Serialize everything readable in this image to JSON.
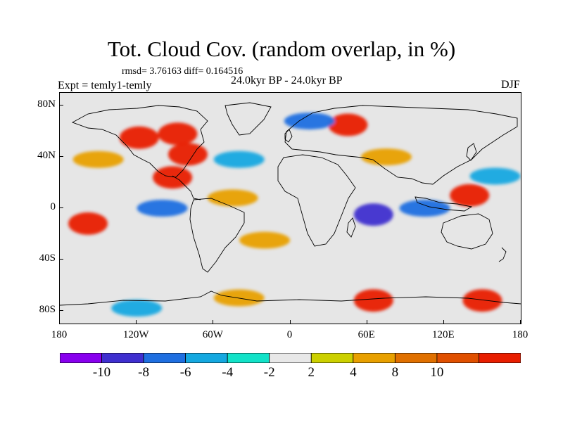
{
  "header": {
    "title": "Tot. Cloud Cov. (random overlap, in %)",
    "stats": "rmsd= 3.76163 diff= 0.164516",
    "experiment": "Expt = temly1-temly",
    "period": "24.0kyr BP - 24.0kyr BP",
    "season": "DJF"
  },
  "map": {
    "projection": "cylindrical equidistant",
    "lon_range": [
      -180,
      180
    ],
    "lat_range": [
      -90,
      90
    ],
    "x_tick_labels": [
      "180",
      "120W",
      "60W",
      "0",
      "60E",
      "120E",
      "180"
    ],
    "y_tick_labels": [
      "80N",
      "40N",
      "0",
      "40S",
      "80S"
    ],
    "background_color": "#e6e6e6",
    "coastline_color": "#000000",
    "anomaly_patches": [
      {
        "region": "North Pacific / Gulf of Alaska",
        "lon": -150,
        "lat": 38,
        "level": 4
      },
      {
        "region": "Western North America",
        "lon": -118,
        "lat": 55,
        "level": 10
      },
      {
        "region": "Hudson Bay",
        "lon": -88,
        "lat": 58,
        "level": 10
      },
      {
        "region": "Eastern United States",
        "lon": -80,
        "lat": 42,
        "level": 10
      },
      {
        "region": "Gulf of Mexico",
        "lon": -92,
        "lat": 24,
        "level": 10
      },
      {
        "region": "Central North Atlantic",
        "lon": -40,
        "lat": 38,
        "level": -4
      },
      {
        "region": "Tropical North Atlantic",
        "lon": -45,
        "lat": 8,
        "level": 4
      },
      {
        "region": "Northern Eurasia",
        "lon": 45,
        "lat": 65,
        "level": 10
      },
      {
        "region": "Scandinavia",
        "lon": 15,
        "lat": 68,
        "level": -6
      },
      {
        "region": "Central Asia",
        "lon": 75,
        "lat": 40,
        "level": 4
      },
      {
        "region": "Equatorial Indian Ocean",
        "lon": 65,
        "lat": -5,
        "level": -8
      },
      {
        "region": "Maritime Continent",
        "lon": 105,
        "lat": 0,
        "level": -6
      },
      {
        "region": "Western Pacific warm pool",
        "lon": 140,
        "lat": 10,
        "level": 10
      },
      {
        "region": "Subtropical western Pacific",
        "lon": 160,
        "lat": 25,
        "level": -4
      },
      {
        "region": "Eastern tropical South Pacific",
        "lon": -158,
        "lat": -12,
        "level": 10
      },
      {
        "region": "Tropical eastern Pacific",
        "lon": -100,
        "lat": 0,
        "level": -6
      },
      {
        "region": "South Atlantic",
        "lon": -20,
        "lat": -25,
        "level": 4
      },
      {
        "region": "Southern Ocean (Atlantic sector)",
        "lon": -40,
        "lat": -70,
        "level": 4
      },
      {
        "region": "Southern Ocean (Indian sector)",
        "lon": 65,
        "lat": -72,
        "level": 10
      },
      {
        "region": "Southern Ocean (Pacific sector)",
        "lon": 150,
        "lat": -72,
        "level": 10
      },
      {
        "region": "Antarctic margin",
        "lon": -120,
        "lat": -78,
        "level": -4
      }
    ]
  },
  "colorbar": {
    "labels": [
      "-10",
      "-8",
      "-6",
      "-4",
      "-2",
      "2",
      "4",
      "8",
      "10"
    ],
    "colors": [
      "#8800ee",
      "#3f2fcf",
      "#1f6fe0",
      "#15a8e0",
      "#12e2c8",
      "#e8e8e8",
      "#ccd000",
      "#e8a000",
      "#e07000",
      "#e05000",
      "#e81e00"
    ]
  }
}
